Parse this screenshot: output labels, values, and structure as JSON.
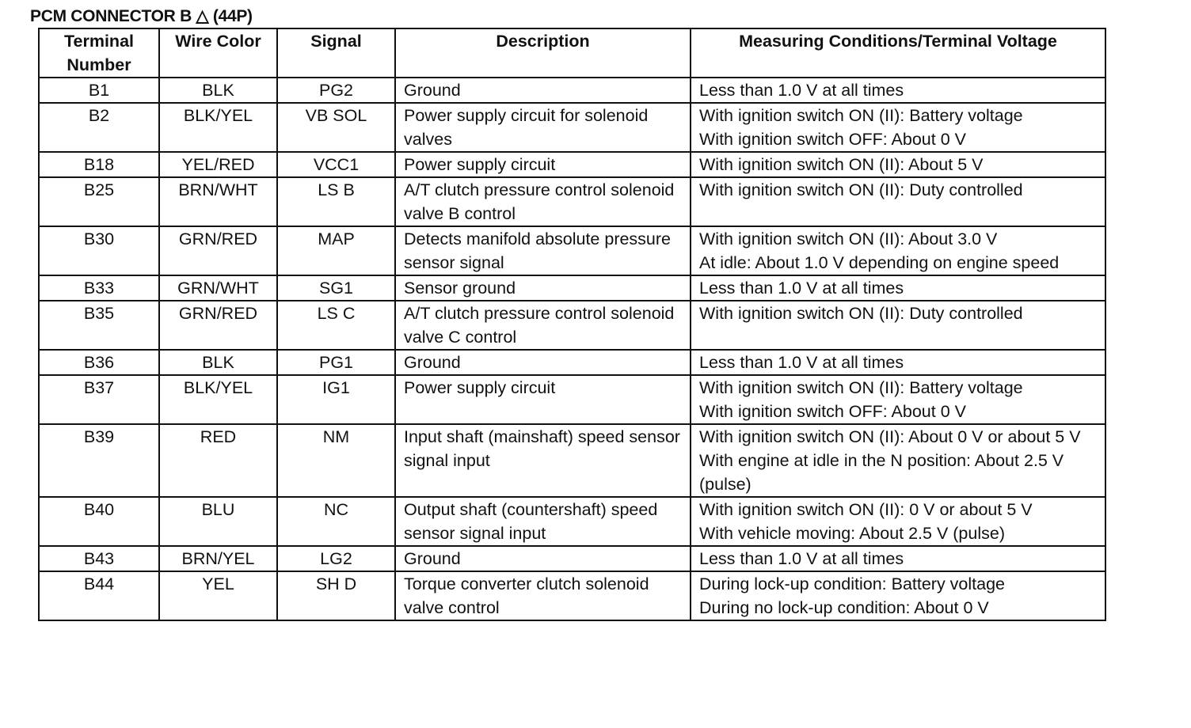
{
  "title": "PCM CONNECTOR B △ (44P)",
  "table": {
    "header": [
      "Terminal Number",
      "Wire Color",
      "Signal",
      "Description",
      "Measuring Conditions/Terminal Voltage"
    ],
    "rows": [
      {
        "terminal": "B1",
        "wire_color": "BLK",
        "signal": "PG2",
        "description": "Ground",
        "conditions": [
          "Less than 1.0 V at all times"
        ]
      },
      {
        "terminal": "B2",
        "wire_color": "BLK/YEL",
        "signal": "VB SOL",
        "description": "Power supply circuit for solenoid valves",
        "conditions": [
          "With ignition switch ON (II): Battery voltage",
          "With ignition switch OFF: About 0 V"
        ]
      },
      {
        "terminal": "B18",
        "wire_color": "YEL/RED",
        "signal": "VCC1",
        "description": "Power supply circuit",
        "conditions": [
          "With ignition switch ON (II): About 5 V"
        ]
      },
      {
        "terminal": "B25",
        "wire_color": "BRN/WHT",
        "signal": "LS B",
        "description": "A/T clutch pressure control solenoid valve B control",
        "conditions": [
          "With ignition switch ON (II): Duty controlled"
        ]
      },
      {
        "terminal": "B30",
        "wire_color": "GRN/RED",
        "signal": "MAP",
        "description": "Detects manifold absolute pressure sensor signal",
        "conditions": [
          "With ignition switch ON (II): About 3.0 V",
          "At idle: About 1.0 V depending on engine speed"
        ]
      },
      {
        "terminal": "B33",
        "wire_color": "GRN/WHT",
        "signal": "SG1",
        "description": "Sensor ground",
        "conditions": [
          "Less than 1.0 V at all times"
        ]
      },
      {
        "terminal": "B35",
        "wire_color": "GRN/RED",
        "signal": "LS C",
        "description": "A/T clutch pressure control solenoid valve C control",
        "conditions": [
          "With ignition switch ON (II): Duty controlled"
        ]
      },
      {
        "terminal": "B36",
        "wire_color": "BLK",
        "signal": "PG1",
        "description": "Ground",
        "conditions": [
          "Less than 1.0 V at all times"
        ]
      },
      {
        "terminal": "B37",
        "wire_color": "BLK/YEL",
        "signal": "IG1",
        "description": "Power supply circuit",
        "conditions": [
          "With ignition switch ON (II): Battery voltage",
          "With ignition switch OFF: About 0 V"
        ]
      },
      {
        "terminal": "B39",
        "wire_color": "RED",
        "signal": "NM",
        "description": "Input shaft (mainshaft) speed sensor signal input",
        "conditions": [
          "With ignition switch ON (II): About 0 V or about 5 V",
          "With engine at idle in the N position: About 2.5 V (pulse)"
        ]
      },
      {
        "terminal": "B40",
        "wire_color": "BLU",
        "signal": "NC",
        "description": "Output shaft (countershaft) speed sensor signal input",
        "conditions": [
          "With ignition switch ON (II): 0 V or about 5 V",
          "With vehicle moving: About 2.5 V (pulse)"
        ]
      },
      {
        "terminal": "B43",
        "wire_color": "BRN/YEL",
        "signal": "LG2",
        "description": "Ground",
        "conditions": [
          "Less than 1.0 V at all times"
        ]
      },
      {
        "terminal": "B44",
        "wire_color": "YEL",
        "signal": "SH D",
        "description": "Torque converter clutch solenoid valve control",
        "conditions": [
          "During lock-up condition: Battery voltage",
          "During no lock-up condition: About 0 V"
        ]
      }
    ]
  }
}
